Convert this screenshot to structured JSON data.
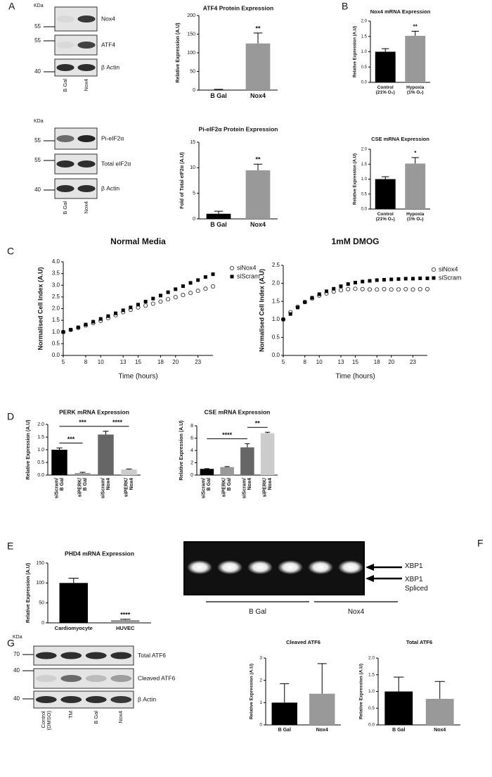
{
  "figure": {
    "panel_labels": [
      "A",
      "B",
      "C",
      "D",
      "E",
      "F",
      "G"
    ],
    "blots": [
      {
        "unit": "KDa",
        "rows": [
          {
            "marker": 55,
            "label": "Nox4"
          },
          {
            "marker": 55,
            "label": "ATF4"
          },
          {
            "marker": 40,
            "label": "β Actin"
          }
        ],
        "lanes": [
          "B Gal",
          "Nox4"
        ]
      },
      {
        "unit": "KDa",
        "rows": [
          {
            "marker": 55,
            "label": "Pi-eIF2α"
          },
          {
            "marker": 55,
            "label": "Total eIF2α"
          },
          {
            "marker": 40,
            "label": "β Actin"
          }
        ],
        "lanes": [
          "B Gal",
          "Nox4"
        ]
      },
      {
        "unit": "KDa",
        "rows": [
          {
            "marker": 70,
            "label": "Total ATF6"
          },
          {
            "marker": 40,
            "label": "Cleaved ATF6"
          },
          {
            "marker": 40,
            "label": "β Actin"
          }
        ],
        "lanes": [
          "Control\n(DMSO)",
          "TM",
          "B Gal",
          "Nox4"
        ]
      }
    ],
    "gel": {
      "bands": [
        "XBP1",
        "XBP1\nSpliced"
      ],
      "groups": [
        "B Gal",
        "Nox4"
      ]
    }
  },
  "chart_data": [
    {
      "type": "bar",
      "title": "ATF4 Protein Expression",
      "ylabel": "Relative Expression (A.U)",
      "categories": [
        "B Gal",
        "Nox4"
      ],
      "values": [
        1,
        125
      ],
      "errors": [
        1,
        28
      ],
      "colors": [
        "#000000",
        "#999999"
      ],
      "ylim": [
        0,
        200
      ],
      "yticks": [
        0,
        50,
        100,
        150,
        200
      ],
      "annotations": [
        {
          "category": "Nox4",
          "text": "**"
        }
      ]
    },
    {
      "type": "bar",
      "title": "Pi-eIF2α Protein Expression",
      "ylabel": "Fold of Total eIF2α (A.U)",
      "categories": [
        "B Gal",
        "Nox4"
      ],
      "values": [
        1,
        9.5
      ],
      "errors": [
        0.5,
        1.2
      ],
      "colors": [
        "#000000",
        "#999999"
      ],
      "ylim": [
        0,
        15
      ],
      "yticks": [
        0,
        5,
        10,
        15
      ],
      "annotations": [
        {
          "category": "Nox4",
          "text": "**"
        }
      ]
    },
    {
      "type": "bar",
      "title": "Nox4 mRNA Expression",
      "ylabel": "Relative Expression (A.U)",
      "categories": [
        "Control\n(21% O₂)",
        "Hypoxia\n(1% O₂)"
      ],
      "values": [
        1.0,
        1.52
      ],
      "errors": [
        0.1,
        0.15
      ],
      "colors": [
        "#000000",
        "#999999"
      ],
      "ylim": [
        0,
        2
      ],
      "yticks": [
        {
          "value": 0,
          "label": "0.0"
        },
        0.5,
        {
          "value": 1,
          "label": "1.0"
        },
        1.5,
        {
          "value": 2,
          "label": "2.0"
        }
      ],
      "annotations": [
        {
          "category": "Hypoxia\n(1% O₂)",
          "text": "**"
        }
      ]
    },
    {
      "type": "bar",
      "title": "CSE mRNA Expression",
      "ylabel": "Relative Expression (A.U)",
      "categories": [
        "Control\n(21% O₂)",
        "Hypoxia\n(1% O₂)"
      ],
      "values": [
        1.0,
        1.52
      ],
      "errors": [
        0.08,
        0.2
      ],
      "colors": [
        "#000000",
        "#999999"
      ],
      "ylim": [
        0,
        2
      ],
      "yticks": [
        {
          "value": 0,
          "label": "0.0"
        },
        0.5,
        {
          "value": 1,
          "label": "1.0"
        },
        1.5,
        {
          "value": 2,
          "label": "2.0"
        }
      ],
      "annotations": [
        {
          "category": "Hypoxia\n(1% O₂)",
          "text": "*"
        }
      ]
    },
    {
      "type": "scatter",
      "title": "Normal Media",
      "xlabel": "Time (hours)",
      "ylabel": "Normalised Cell Index (A.U)",
      "x": [
        5,
        6,
        7,
        8,
        9,
        10,
        11,
        12,
        13,
        14,
        15,
        16,
        17,
        18,
        19,
        20,
        21,
        22,
        23,
        24,
        25
      ],
      "series": [
        {
          "name": "siNox4",
          "marker": "circle",
          "color": "#333333",
          "values": [
            1.0,
            1.09,
            1.18,
            1.28,
            1.38,
            1.48,
            1.6,
            1.72,
            1.85,
            1.95,
            2.05,
            2.13,
            2.21,
            2.3,
            2.4,
            2.49,
            2.58,
            2.67,
            2.76,
            2.85,
            2.95
          ]
        },
        {
          "name": "siScram",
          "marker": "square",
          "color": "#000000",
          "values": [
            1.0,
            1.1,
            1.2,
            1.32,
            1.44,
            1.56,
            1.68,
            1.8,
            1.93,
            2.05,
            2.17,
            2.3,
            2.43,
            2.56,
            2.7,
            2.83,
            2.96,
            3.1,
            3.22,
            3.35,
            3.47
          ]
        }
      ],
      "xlim": [
        5,
        25
      ],
      "xticks": [
        5,
        8,
        10,
        13,
        15,
        18,
        20,
        23
      ],
      "ylim": [
        0,
        4
      ],
      "yticks": [
        {
          "value": 0,
          "label": "0.0"
        },
        0.5,
        {
          "value": 1,
          "label": "1.0"
        },
        1.5,
        {
          "value": 2,
          "label": "2.0"
        },
        2.5,
        {
          "value": 3,
          "label": "3.0"
        },
        3.5,
        {
          "value": 4,
          "label": "4.0"
        }
      ]
    },
    {
      "type": "scatter",
      "title": "1mM DMOG",
      "xlabel": "Time (hours)",
      "ylabel": "Normalised Cell Index (A.U)",
      "x": [
        5,
        6,
        7,
        8,
        9,
        10,
        11,
        12,
        13,
        14,
        15,
        16,
        17,
        18,
        19,
        20,
        21,
        22,
        23,
        24,
        25
      ],
      "series": [
        {
          "name": "siNox4",
          "marker": "circle",
          "color": "#333333",
          "values": [
            1.0,
            1.2,
            1.35,
            1.48,
            1.58,
            1.66,
            1.72,
            1.77,
            1.81,
            1.84,
            1.85,
            1.84,
            1.83,
            1.83,
            1.84,
            1.83,
            1.83,
            1.84,
            1.83,
            1.84,
            1.84
          ]
        },
        {
          "name": "siScram",
          "marker": "square",
          "color": "#000000",
          "values": [
            1.0,
            1.15,
            1.33,
            1.48,
            1.6,
            1.7,
            1.78,
            1.85,
            1.92,
            1.98,
            2.02,
            2.05,
            2.07,
            2.09,
            2.1,
            2.11,
            2.12,
            2.13,
            2.13,
            2.14,
            2.14
          ]
        }
      ],
      "xlim": [
        5,
        25
      ],
      "xticks": [
        5,
        8,
        10,
        13,
        15,
        18,
        20,
        23
      ],
      "ylim": [
        0,
        2.5
      ],
      "yticks": [
        {
          "value": 0,
          "label": "0.0"
        },
        0.5,
        {
          "value": 1,
          "label": "1.0"
        },
        1.5,
        {
          "value": 2,
          "label": "2.0"
        },
        2.5
      ]
    },
    {
      "type": "bar",
      "title": "PERK mRNA Expression",
      "ylabel": "Relative Expression (A.U)",
      "categories": [
        "siScram/\nB Gal",
        "siPERK/\nB Gal",
        "siScram/\nNox4",
        "siPERK/\nNox4"
      ],
      "values": [
        1.0,
        0.08,
        1.6,
        0.22
      ],
      "errors": [
        0.07,
        0.03,
        0.13,
        0.02
      ],
      "colors": [
        "#000000",
        "#999999",
        "#666666",
        "#cccccc"
      ],
      "ylim": [
        0,
        2
      ],
      "yticks": [
        {
          "value": 0,
          "label": "0.0"
        },
        0.5,
        {
          "value": 1,
          "label": "1.0"
        },
        1.5,
        {
          "value": 2,
          "label": "2.0"
        }
      ],
      "brackets": [
        {
          "between": [
            "siScram/\nB Gal",
            "siPERK/\nB Gal"
          ],
          "text": "***"
        },
        {
          "between": [
            "siScram/\nB Gal",
            "siScram/\nNox4"
          ],
          "text": "***"
        },
        {
          "between": [
            "siScram/\nNox4",
            "siPERK/\nNox4"
          ],
          "text": "****"
        }
      ]
    },
    {
      "type": "bar",
      "title": "CSE mRNA Expression",
      "ylabel": "Relative Expression (A.U)",
      "categories": [
        "siScram/\nB Gal",
        "siPERK/\nB Gal",
        "siScram/\nNox4",
        "siPERK/\nNox4"
      ],
      "values": [
        1.0,
        1.3,
        4.5,
        6.8
      ],
      "errors": [
        0.05,
        0.08,
        0.6,
        0.15
      ],
      "colors": [
        "#000000",
        "#999999",
        "#666666",
        "#cccccc"
      ],
      "ylim": [
        0,
        8
      ],
      "yticks": [
        0,
        2,
        4,
        6,
        8
      ],
      "brackets": [
        {
          "between": [
            "siScram/\nB Gal",
            "siScram/\nNox4"
          ],
          "text": "****"
        },
        {
          "between": [
            "siScram/\nNox4",
            "siPERK/\nNox4"
          ],
          "text": "**"
        }
      ]
    },
    {
      "type": "bar",
      "title": "PHD4 mRNA Expression",
      "ylabel": "Relative Expression (A.U)",
      "categories": [
        "Cardiomyocyte",
        "HUVEC"
      ],
      "values": [
        100,
        7
      ],
      "errors": [
        12,
        2
      ],
      "colors": [
        "#000000",
        "#999999"
      ],
      "ylim": [
        0,
        150
      ],
      "yticks": [
        0,
        50,
        100,
        150
      ],
      "annotations": [
        {
          "category": "HUVEC",
          "text": "****"
        }
      ]
    },
    {
      "type": "bar",
      "title": "Cleaved ATF6",
      "ylabel": "Relative Expression (A.U)",
      "categories": [
        "B Gal",
        "Nox4"
      ],
      "values": [
        1.0,
        1.4
      ],
      "errors": [
        0.85,
        1.35
      ],
      "colors": [
        "#000000",
        "#999999"
      ],
      "ylim": [
        0,
        3
      ],
      "yticks": [
        0,
        1,
        2,
        3
      ]
    },
    {
      "type": "bar",
      "title": "Total ATF6",
      "ylabel": "Relative Expression (A.U)",
      "categories": [
        "B Gal",
        "Nox4"
      ],
      "values": [
        1.0,
        0.78
      ],
      "errors": [
        0.43,
        0.52
      ],
      "colors": [
        "#000000",
        "#999999"
      ],
      "ylim": [
        0,
        2
      ],
      "yticks": [
        {
          "value": 0,
          "label": "0.0"
        },
        0.5,
        {
          "value": 1,
          "label": "1.0"
        },
        1.5,
        {
          "value": 2,
          "label": "2.0"
        }
      ]
    }
  ]
}
